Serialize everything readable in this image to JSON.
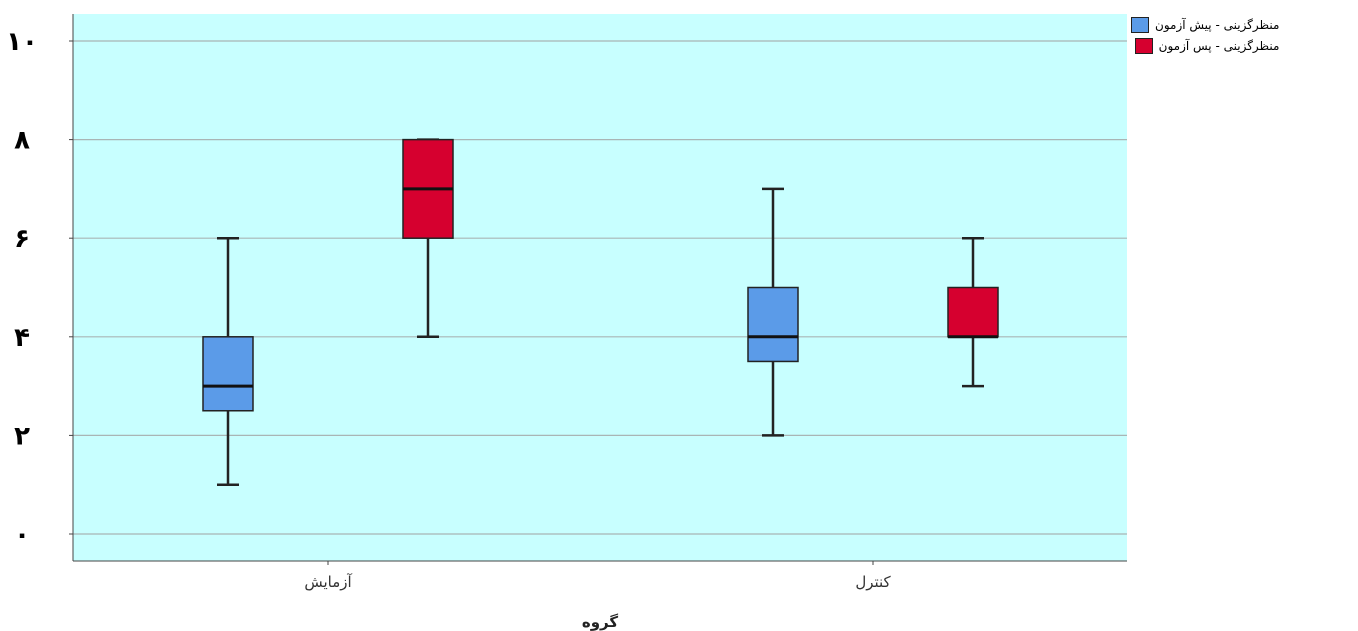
{
  "chart_data": {
    "type": "box",
    "categories": [
      "آزمایش",
      "کنترل"
    ],
    "xlabel": "گروه",
    "ylabel": "",
    "ylim": [
      -0.5,
      10.5
    ],
    "yticks": [
      0,
      2,
      4,
      6,
      8,
      10
    ],
    "ytick_labels": [
      "۰",
      "۲",
      "۴",
      "۶",
      "۸",
      "۱۰"
    ],
    "plot_background": "#c8ffff",
    "grid": true,
    "legend_position": "top-right",
    "series": [
      {
        "name": "منظرگزینی - پیش آزمون",
        "color": "#5b9be8",
        "boxes": [
          {
            "min": 1,
            "q1": 2.5,
            "median": 3,
            "q3": 4,
            "max": 6
          },
          {
            "min": 2,
            "q1": 3.5,
            "median": 4,
            "q3": 5,
            "max": 7
          }
        ]
      },
      {
        "name": "منظرگزینی - پس آزمون",
        "color": "#d6002f",
        "boxes": [
          {
            "min": 4,
            "q1": 6,
            "median": 7,
            "q3": 8,
            "max": 8
          },
          {
            "min": 3,
            "q1": 4,
            "median": 4,
            "q3": 5,
            "max": 6
          }
        ]
      }
    ]
  }
}
